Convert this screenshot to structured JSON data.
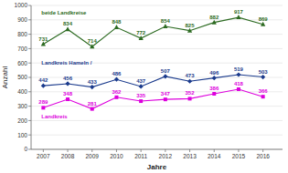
{
  "chart_data": {
    "type": "line",
    "x": [
      2007,
      2008,
      2009,
      2010,
      2011,
      2012,
      2013,
      2014,
      2015,
      2016
    ],
    "series": [
      {
        "name": "beide Landkreise",
        "color": "#2d6b22",
        "marker": "triangle",
        "values": [
          731,
          834,
          714,
          848,
          772,
          854,
          825,
          882,
          917,
          869
        ]
      },
      {
        "name": "Landkreis Hameln /",
        "color": "#1a3a8c",
        "marker": "diamond",
        "values": [
          442,
          456,
          433,
          486,
          437,
          507,
          473,
          496,
          519,
          503
        ]
      },
      {
        "name": "Landkreis",
        "color": "#dd00dd",
        "marker": "square",
        "values": [
          289,
          348,
          281,
          362,
          335,
          347,
          352,
          386,
          418,
          366
        ]
      }
    ],
    "xlabel": "Jahre",
    "ylabel": "Anzahl",
    "xlim": [
      2006.5,
      2016.8
    ],
    "xticks": [
      2007,
      2008,
      2009,
      2010,
      2011,
      2012,
      2013,
      2014,
      2015,
      2016
    ],
    "ylim": [
      0,
      1000
    ],
    "yticks": [
      0,
      100,
      200,
      300,
      400,
      500,
      600,
      700,
      800,
      900,
      1000
    ],
    "grid": true,
    "data_labels": true
  }
}
